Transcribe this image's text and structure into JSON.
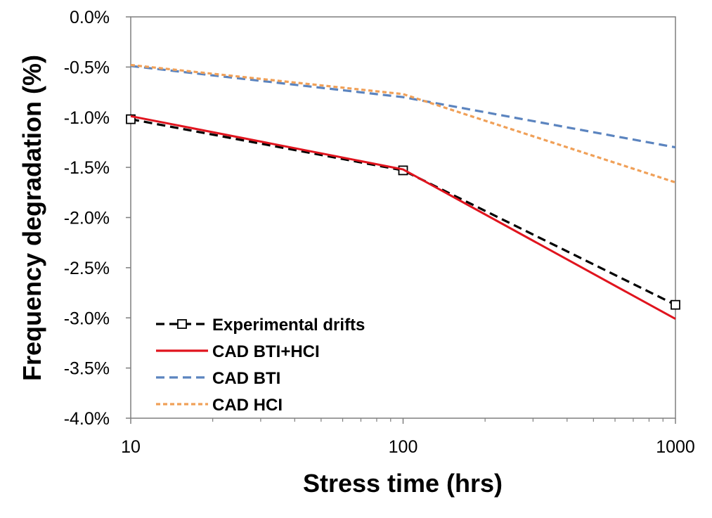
{
  "chart_data": {
    "type": "line",
    "title": "",
    "xlabel": "Stress time (hrs)",
    "ylabel": "Frequency degradation (%)",
    "x_scale": "log",
    "xlim": [
      10,
      1000
    ],
    "ylim": [
      -4.0,
      0.0
    ],
    "x_ticks": [
      10,
      100,
      1000
    ],
    "x_tick_labels": [
      "10",
      "100",
      "1000"
    ],
    "y_ticks": [
      0.0,
      -0.5,
      -1.0,
      -1.5,
      -2.0,
      -2.5,
      -3.0,
      -3.5,
      -4.0
    ],
    "y_tick_labels": [
      "0.0%",
      "-0.5%",
      "-1.0%",
      "-1.5%",
      "-2.0%",
      "-2.5%",
      "-3.0%",
      "-3.5%",
      "-4.0%"
    ],
    "grid": false,
    "legend_position": "bottom-left",
    "series": [
      {
        "name": "Experimental drifts",
        "x": [
          10,
          100,
          1000
        ],
        "y": [
          -1.02,
          -1.53,
          -2.87
        ],
        "color": "#000000",
        "style": "dashed",
        "marker": "square"
      },
      {
        "name": "CAD BTI+HCI",
        "x": [
          10,
          100,
          1000
        ],
        "y": [
          -0.99,
          -1.52,
          -3.01
        ],
        "color": "#e0141e",
        "style": "solid",
        "marker": "none"
      },
      {
        "name": "CAD BTI",
        "x": [
          10,
          100,
          1000
        ],
        "y": [
          -0.49,
          -0.8,
          -1.3
        ],
        "color": "#5b84bf",
        "style": "dashed",
        "marker": "none"
      },
      {
        "name": "CAD HCI",
        "x": [
          10,
          100,
          1000
        ],
        "y": [
          -0.48,
          -0.77,
          -1.65
        ],
        "color": "#f0a058",
        "style": "dotted",
        "marker": "none"
      }
    ]
  }
}
